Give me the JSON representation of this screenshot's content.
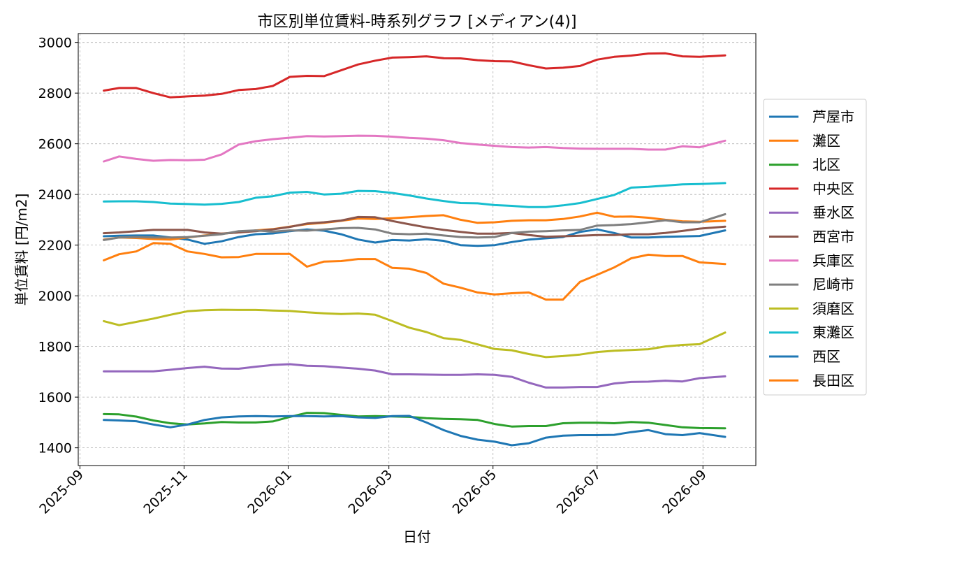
{
  "chart_data": {
    "type": "line",
    "title": "市区別単位賃料-時系列グラフ [メディアン(4)]",
    "xlabel": "日付",
    "ylabel": "単位賃料 [円/m2]",
    "xlim": [
      "2025-08-31",
      "2026-10-02"
    ],
    "ylim": [
      1330,
      3035
    ],
    "grid": true,
    "legend_position": "right",
    "x_ticks": [
      "2025-09",
      "2025-11",
      "2026-01",
      "2026-03",
      "2026-05",
      "2026-07",
      "2026-09"
    ],
    "y_ticks": [
      1400,
      1600,
      1800,
      2000,
      2200,
      2400,
      2600,
      2800,
      3000
    ],
    "dates": [
      "2025-09-15",
      "2025-09-24",
      "2025-10-04",
      "2025-10-14",
      "2025-10-24",
      "2025-11-03",
      "2025-11-13",
      "2025-11-23",
      "2025-12-03",
      "2025-12-13",
      "2025-12-23",
      "2026-01-02",
      "2026-01-12",
      "2026-01-22",
      "2026-02-01",
      "2026-02-11",
      "2026-02-21",
      "2026-03-03",
      "2026-03-13",
      "2026-03-23",
      "2026-04-02",
      "2026-04-12",
      "2026-04-22",
      "2026-05-02",
      "2026-05-12",
      "2026-05-22",
      "2026-06-01",
      "2026-06-11",
      "2026-06-21",
      "2026-07-01",
      "2026-07-11",
      "2026-07-21",
      "2026-07-31",
      "2026-08-10",
      "2026-08-20",
      "2026-08-30",
      "2026-09-14"
    ],
    "series": [
      {
        "name": "芦屋市",
        "color": "#1f77b4",
        "values": [
          2235,
          2237,
          2238,
          2238,
          2230,
          2222,
          2205,
          2215,
          2232,
          2243,
          2246,
          2255,
          2262,
          2257,
          2243,
          2222,
          2210,
          2220,
          2218,
          2223,
          2217,
          2200,
          2197,
          2200,
          2212,
          2222,
          2227,
          2232,
          2252,
          2262,
          2248,
          2230,
          2230,
          2233,
          2234,
          2236,
          2258
        ]
      },
      {
        "name": "灘区",
        "color": "#ff7f0e",
        "values": [
          2222,
          2230,
          2228,
          2224,
          2222,
          2230,
          2238,
          2245,
          2250,
          2258,
          2263,
          2273,
          2283,
          2288,
          2296,
          2305,
          2303,
          2306,
          2310,
          2315,
          2318,
          2300,
          2288,
          2290,
          2296,
          2298,
          2298,
          2303,
          2313,
          2328,
          2312,
          2313,
          2308,
          2300,
          2294,
          2292,
          2296
        ]
      },
      {
        "name": "北区",
        "color": "#2ca02c",
        "values": [
          1533,
          1532,
          1523,
          1508,
          1497,
          1492,
          1496,
          1502,
          1500,
          1500,
          1504,
          1522,
          1538,
          1537,
          1530,
          1524,
          1525,
          1524,
          1522,
          1517,
          1514,
          1513,
          1510,
          1494,
          1484,
          1486,
          1486,
          1497,
          1499,
          1499,
          1497,
          1502,
          1499,
          1490,
          1481,
          1478,
          1477
        ]
      },
      {
        "name": "中央区",
        "color": "#d62728",
        "values": [
          2810,
          2820,
          2820,
          2800,
          2783,
          2787,
          2790,
          2797,
          2812,
          2816,
          2828,
          2864,
          2868,
          2867,
          2890,
          2913,
          2928,
          2940,
          2942,
          2945,
          2938,
          2937,
          2930,
          2926,
          2925,
          2910,
          2897,
          2900,
          2907,
          2932,
          2943,
          2948,
          2956,
          2957,
          2945,
          2943,
          2949
        ]
      },
      {
        "name": "垂水区",
        "color": "#9467bd",
        "values": [
          1702,
          1702,
          1702,
          1702,
          1708,
          1715,
          1720,
          1713,
          1712,
          1720,
          1727,
          1730,
          1724,
          1722,
          1717,
          1712,
          1705,
          1690,
          1690,
          1689,
          1688,
          1688,
          1690,
          1688,
          1680,
          1657,
          1638,
          1638,
          1640,
          1640,
          1654,
          1660,
          1661,
          1665,
          1662,
          1675,
          1682
        ]
      },
      {
        "name": "西宮市",
        "color": "#8c564b",
        "values": [
          2247,
          2250,
          2255,
          2260,
          2260,
          2260,
          2250,
          2245,
          2250,
          2255,
          2262,
          2272,
          2285,
          2290,
          2297,
          2311,
          2310,
          2295,
          2282,
          2270,
          2260,
          2252,
          2245,
          2245,
          2248,
          2240,
          2233,
          2235,
          2237,
          2240,
          2240,
          2243,
          2243,
          2248,
          2256,
          2265,
          2273
        ]
      },
      {
        "name": "兵庫区",
        "color": "#e377c2",
        "values": [
          2530,
          2550,
          2540,
          2533,
          2536,
          2535,
          2537,
          2558,
          2597,
          2610,
          2618,
          2624,
          2630,
          2629,
          2630,
          2632,
          2631,
          2628,
          2623,
          2620,
          2614,
          2603,
          2597,
          2592,
          2587,
          2585,
          2587,
          2583,
          2581,
          2580,
          2580,
          2580,
          2577,
          2577,
          2590,
          2586,
          2612
        ]
      },
      {
        "name": "尼崎市",
        "color": "#7f7f7f",
        "values": [
          2220,
          2230,
          2232,
          2230,
          2230,
          2232,
          2237,
          2243,
          2255,
          2258,
          2253,
          2258,
          2257,
          2262,
          2267,
          2268,
          2262,
          2245,
          2243,
          2245,
          2238,
          2232,
          2230,
          2232,
          2248,
          2253,
          2255,
          2258,
          2260,
          2277,
          2279,
          2283,
          2290,
          2298,
          2290,
          2290,
          2322
        ]
      },
      {
        "name": "須磨区",
        "color": "#bcbd22",
        "values": [
          1900,
          1884,
          1897,
          1910,
          1925,
          1939,
          1943,
          1945,
          1944,
          1944,
          1942,
          1940,
          1935,
          1931,
          1928,
          1930,
          1925,
          1900,
          1874,
          1857,
          1833,
          1826,
          1808,
          1790,
          1785,
          1770,
          1758,
          1762,
          1768,
          1778,
          1783,
          1786,
          1789,
          1800,
          1806,
          1809,
          1855
        ]
      },
      {
        "name": "東灘区",
        "color": "#17becf",
        "values": [
          2372,
          2373,
          2373,
          2370,
          2364,
          2362,
          2360,
          2363,
          2370,
          2387,
          2393,
          2407,
          2410,
          2400,
          2403,
          2414,
          2413,
          2406,
          2396,
          2384,
          2374,
          2366,
          2365,
          2358,
          2355,
          2350,
          2350,
          2357,
          2366,
          2382,
          2398,
          2427,
          2430,
          2435,
          2440,
          2441,
          2445
        ]
      },
      {
        "name": "西区",
        "color": "#1f77b4",
        "values": [
          1510,
          1508,
          1505,
          1492,
          1481,
          1492,
          1510,
          1520,
          1524,
          1525,
          1524,
          1525,
          1525,
          1524,
          1525,
          1520,
          1518,
          1525,
          1526,
          1500,
          1470,
          1447,
          1432,
          1424,
          1410,
          1418,
          1440,
          1448,
          1450,
          1450,
          1451,
          1462,
          1470,
          1454,
          1450,
          1458,
          1443
        ]
      },
      {
        "name": "長田区",
        "color": "#ff7f0e",
        "values": [
          2140,
          2164,
          2175,
          2208,
          2205,
          2175,
          2165,
          2152,
          2153,
          2165,
          2165,
          2165,
          2115,
          2135,
          2137,
          2145,
          2145,
          2110,
          2107,
          2090,
          2048,
          2032,
          2013,
          2005,
          2010,
          2013,
          1985,
          1985,
          2055,
          2083,
          2112,
          2148,
          2162,
          2157,
          2157,
          2132,
          2125
        ]
      }
    ]
  }
}
